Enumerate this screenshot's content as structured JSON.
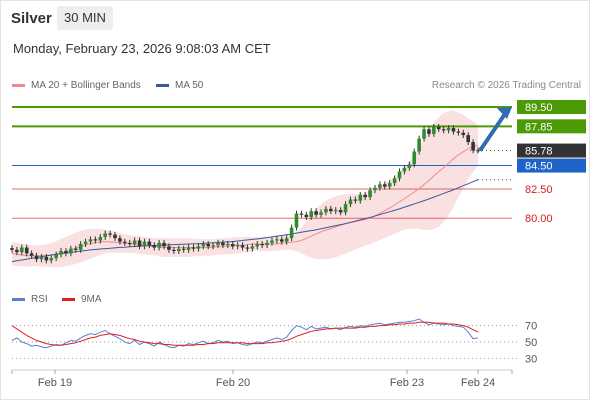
{
  "header": {
    "instrument": "Silver",
    "interval": "30 MIN",
    "datetime": "Monday, February 23, 2026 9:08:03 AM CET"
  },
  "legend": {
    "items": [
      {
        "label": "MA 20 + Bollinger Bands",
        "color": "#f08a8a"
      },
      {
        "label": "MA 50",
        "color": "#3a5a9c"
      }
    ],
    "credit": "Research © 2026 Trading Central"
  },
  "rsi_legend": {
    "items": [
      {
        "label": "RSI",
        "color": "#5b7fd6"
      },
      {
        "label": "9MA",
        "color": "#e02020"
      }
    ]
  },
  "chart_data": [
    {
      "type": "candlestick",
      "title": "Silver",
      "interval": "30 MIN",
      "x_ticks": [
        "Feb 19",
        "Feb 20",
        "Feb 23",
        "Feb 24"
      ],
      "current_price": 85.78,
      "levels": [
        {
          "value": 89.5,
          "label": "89.50",
          "kind": "resistance",
          "color": "#4c9a06"
        },
        {
          "value": 87.85,
          "label": "87.85",
          "kind": "resistance",
          "color": "#4c9a06"
        },
        {
          "value": 85.78,
          "label": "85.78",
          "kind": "last",
          "color": "#333333"
        },
        {
          "value": 84.5,
          "label": "84.50",
          "kind": "pivot",
          "color": "#1f63c8"
        },
        {
          "value": 82.5,
          "label": "82.50",
          "kind": "support",
          "color": "#d32020"
        },
        {
          "value": 80.0,
          "label": "80.00",
          "kind": "support",
          "color": "#d32020"
        }
      ],
      "forecast_arrow": {
        "from": 85.78,
        "to": 89.5,
        "color": "#2f6cb0"
      },
      "closes": [
        77.3,
        77.1,
        77.5,
        77.0,
        76.8,
        76.5,
        76.7,
        76.4,
        76.6,
        76.9,
        77.2,
        77.0,
        77.4,
        77.3,
        77.8,
        78.0,
        78.2,
        78.1,
        78.4,
        78.7,
        78.6,
        78.3,
        78.0,
        77.9,
        77.8,
        78.1,
        77.6,
        78.0,
        77.7,
        77.5,
        77.9,
        77.6,
        77.3,
        77.2,
        77.4,
        77.3,
        77.5,
        77.4,
        77.6,
        77.8,
        77.6,
        77.7,
        77.9,
        77.7,
        77.8,
        77.6,
        77.7,
        77.5,
        77.4,
        77.6,
        77.8,
        77.7,
        77.9,
        78.1,
        78.2,
        78.0,
        78.3,
        79.2,
        80.4,
        80.3,
        80.1,
        80.6,
        80.3,
        80.5,
        80.8,
        80.6,
        80.7,
        80.5,
        81.2,
        81.6,
        81.5,
        82.0,
        81.8,
        82.4,
        82.6,
        82.9,
        82.7,
        83.0,
        83.4,
        84.0,
        84.3,
        84.6,
        85.7,
        86.8,
        87.6,
        87.2,
        87.8,
        87.6,
        87.5,
        87.7,
        87.4,
        87.3,
        87.1,
        86.5,
        85.8,
        85.78
      ],
      "ma20": [
        77.0,
        76.9,
        76.85,
        76.8,
        76.8,
        76.8,
        76.8,
        76.85,
        76.9,
        77.0,
        77.15,
        77.3,
        77.45,
        77.6,
        77.75,
        77.85,
        77.95,
        78.0,
        78.0,
        77.95,
        77.9,
        77.85,
        77.8,
        77.75,
        77.7,
        77.65,
        77.6,
        77.55,
        77.5,
        77.5,
        77.5,
        77.5,
        77.5,
        77.5,
        77.5,
        77.5,
        77.5,
        77.5,
        77.55,
        77.6,
        77.6,
        77.65,
        77.7,
        77.7,
        77.75,
        77.8,
        77.8,
        77.8,
        77.8,
        77.8,
        77.85,
        77.9,
        77.95,
        78.0,
        78.1,
        78.3,
        78.5,
        78.7,
        78.9,
        79.05,
        79.2,
        79.35,
        79.5,
        79.6,
        79.7,
        79.8,
        79.9,
        80.05,
        80.25,
        80.5,
        80.75,
        81.0,
        81.3,
        81.6,
        81.9,
        82.2,
        82.55,
        82.9,
        83.3,
        83.7,
        84.1,
        84.5,
        84.9,
        85.3,
        85.6,
        85.9,
        86.1,
        86.25
      ],
      "ma50": [
        76.3,
        76.38,
        76.46,
        76.54,
        76.62,
        76.7,
        76.78,
        76.86,
        76.94,
        77.0,
        77.06,
        77.12,
        77.18,
        77.24,
        77.3,
        77.34,
        77.38,
        77.42,
        77.46,
        77.5,
        77.53,
        77.56,
        77.59,
        77.62,
        77.65,
        77.67,
        77.69,
        77.71,
        77.73,
        77.75,
        77.77,
        77.79,
        77.81,
        77.83,
        77.85,
        77.88,
        77.91,
        77.94,
        77.97,
        78.0,
        78.05,
        78.1,
        78.15,
        78.2,
        78.25,
        78.32,
        78.39,
        78.46,
        78.53,
        78.6,
        78.68,
        78.76,
        78.84,
        78.92,
        79.0,
        79.1,
        79.2,
        79.3,
        79.4,
        79.5,
        79.62,
        79.74,
        79.86,
        79.98,
        80.1,
        80.24,
        80.38,
        80.52,
        80.66,
        80.8,
        80.96,
        81.12,
        81.28,
        81.44,
        81.6,
        81.78,
        81.96,
        82.14,
        82.32,
        82.5,
        82.7,
        82.9,
        83.1,
        83.3
      ],
      "bb_upper": [
        78.0,
        77.9,
        77.8,
        77.75,
        77.7,
        77.7,
        77.75,
        77.85,
        78.0,
        78.2,
        78.4,
        78.6,
        78.8,
        78.95,
        79.05,
        79.1,
        79.1,
        79.05,
        78.95,
        78.85,
        78.75,
        78.65,
        78.55,
        78.5,
        78.45,
        78.4,
        78.35,
        78.3,
        78.3,
        78.3,
        78.3,
        78.3,
        78.3,
        78.3,
        78.25,
        78.25,
        78.2,
        78.2,
        78.25,
        78.3,
        78.3,
        78.35,
        78.4,
        78.4,
        78.4,
        78.4,
        78.4,
        78.4,
        78.4,
        78.4,
        78.45,
        78.5,
        78.6,
        78.8,
        79.2,
        79.8,
        80.4,
        80.9,
        81.3,
        81.6,
        81.8,
        81.95,
        82.05,
        82.1,
        82.1,
        82.1,
        82.15,
        82.3,
        82.5,
        82.8,
        83.1,
        83.4,
        83.8,
        84.2,
        84.7,
        85.3,
        86.0,
        86.8,
        87.6,
        88.3,
        88.8,
        89.1,
        89.2,
        89.1,
        88.9,
        88.6,
        88.3,
        88.0
      ],
      "bb_lower": [
        76.0,
        75.9,
        75.9,
        75.85,
        75.9,
        75.9,
        75.85,
        75.85,
        75.8,
        75.8,
        75.9,
        76.0,
        76.1,
        76.25,
        76.45,
        76.6,
        76.8,
        76.95,
        77.05,
        77.05,
        77.05,
        77.05,
        77.05,
        77.0,
        76.95,
        76.9,
        76.85,
        76.8,
        76.7,
        76.7,
        76.7,
        76.7,
        76.7,
        76.7,
        76.75,
        76.75,
        76.8,
        76.8,
        76.85,
        76.9,
        76.9,
        76.95,
        77.0,
        77.0,
        77.1,
        77.2,
        77.2,
        77.2,
        77.2,
        77.2,
        77.25,
        77.3,
        77.3,
        77.2,
        77.0,
        76.8,
        76.6,
        76.5,
        76.5,
        76.5,
        76.6,
        76.75,
        76.95,
        77.1,
        77.3,
        77.5,
        77.65,
        77.8,
        78.0,
        78.2,
        78.4,
        78.6,
        78.8,
        79.0,
        79.1,
        79.1,
        79.1,
        79.0,
        79.0,
        79.1,
        79.4,
        79.9,
        80.6,
        81.5,
        82.3,
        83.2,
        83.9,
        84.5
      ]
    },
    {
      "type": "line",
      "title": "RSI",
      "series": [
        {
          "name": "RSI",
          "color": "#5b7fd6",
          "values": [
            52,
            55,
            50,
            48,
            45,
            46,
            44,
            43,
            45,
            47,
            46,
            49,
            52,
            51,
            55,
            58,
            60,
            59,
            62,
            64,
            60,
            57,
            54,
            50,
            48,
            52,
            47,
            50,
            48,
            45,
            50,
            47,
            44,
            43,
            46,
            45,
            48,
            47,
            49,
            51,
            48,
            49,
            52,
            50,
            51,
            48,
            49,
            47,
            46,
            48,
            50,
            49,
            51,
            53,
            55,
            53,
            56,
            64,
            70,
            68,
            65,
            69,
            66,
            67,
            68,
            66,
            67,
            65,
            68,
            69,
            68,
            70,
            69,
            71,
            72,
            73,
            71,
            72,
            73,
            74,
            74,
            75,
            76,
            78,
            74,
            71,
            73,
            72,
            71,
            72,
            70,
            69,
            68,
            62,
            54,
            55
          ]
        },
        {
          "name": "9MA",
          "color": "#e02020",
          "values": [
            70,
            66,
            62,
            58,
            55,
            52,
            50,
            48,
            47,
            46,
            46,
            47,
            48,
            49,
            51,
            53,
            55,
            56,
            58,
            59,
            60,
            59,
            58,
            56,
            54,
            53,
            51,
            50,
            49,
            48,
            48,
            47,
            47,
            46,
            46,
            46,
            46,
            46,
            47,
            47,
            48,
            48,
            49,
            49,
            49,
            49,
            49,
            49,
            48,
            48,
            48,
            48,
            49,
            49,
            50,
            51,
            52,
            54,
            57,
            59,
            61,
            63,
            64,
            65,
            66,
            66,
            67,
            67,
            67,
            67,
            67,
            68,
            68,
            69,
            69,
            70,
            70,
            71,
            71,
            72,
            72,
            73,
            73,
            74,
            74,
            74,
            73,
            73,
            73,
            72,
            72,
            71,
            70,
            68,
            65,
            62
          ]
        }
      ],
      "y_ticks": [
        70,
        50,
        30
      ]
    }
  ]
}
